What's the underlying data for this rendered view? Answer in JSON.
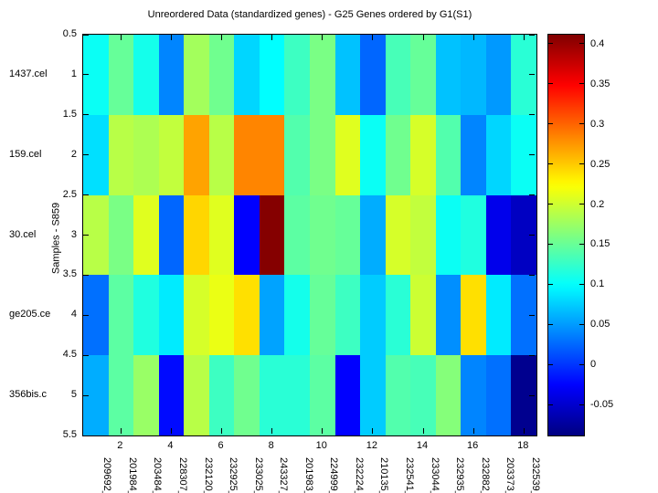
{
  "chart_data": {
    "type": "heatmap",
    "title": "Unreordered Data (standardized genes) - G25 Genes ordered by G1(S1)",
    "ylabel": "Samples - S859",
    "colormap": "jet",
    "grid": false,
    "colorbar_position": "right",
    "caxis": [
      -0.0875,
      0.4125
    ],
    "x_range": [
      0.5,
      18.5
    ],
    "y_range": [
      0.5,
      5.5
    ],
    "x_tick_values": [
      2,
      4,
      6,
      8,
      10,
      12,
      14,
      16,
      18
    ],
    "x_tick_labels": [
      "2",
      "4",
      "6",
      "8",
      "10",
      "12",
      "14",
      "16",
      "18"
    ],
    "y_tick_values": [
      0.5,
      1,
      1.5,
      2,
      2.5,
      3,
      3.5,
      4,
      4.5,
      5,
      5.5
    ],
    "y_tick_labels": [
      "0.5",
      "1",
      "1.5",
      "2",
      "2.5",
      "3",
      "3.5",
      "4",
      "4.5",
      "5",
      "5.5"
    ],
    "gene_labels": [
      "209692_",
      "201984_",
      "203484_",
      "228307_",
      "232120_",
      "232925_",
      "233025_",
      "243327_",
      "201983_",
      "224999_",
      "232224_",
      "210135_",
      "232541_",
      "233044_",
      "232935_",
      "232882_",
      "203373_",
      "232539_"
    ],
    "sample_labels": [
      "1437.cel",
      "159.cel",
      "30.cel",
      "ge205.ce",
      "356bis.c"
    ],
    "sample_positions": [
      1,
      2,
      3,
      4,
      5
    ],
    "values": [
      [
        0.105,
        0.15,
        0.11,
        0.04,
        0.18,
        0.155,
        0.08,
        0.1,
        0.13,
        0.16,
        0.07,
        0.025,
        0.135,
        0.15,
        0.07,
        0.065,
        0.05,
        0.12
      ],
      [
        0.085,
        0.19,
        0.185,
        0.195,
        0.27,
        0.19,
        0.285,
        0.285,
        0.14,
        0.16,
        0.21,
        0.105,
        0.155,
        0.205,
        0.14,
        0.04,
        0.08,
        0.105
      ],
      [
        0.19,
        0.16,
        0.21,
        0.025,
        0.245,
        0.21,
        -0.025,
        0.41,
        0.145,
        0.155,
        0.15,
        0.06,
        0.205,
        0.195,
        0.105,
        0.115,
        -0.035,
        -0.055
      ],
      [
        0.03,
        0.145,
        0.115,
        0.09,
        0.205,
        0.215,
        0.24,
        0.055,
        0.11,
        0.15,
        0.13,
        0.075,
        0.12,
        0.2,
        0.045,
        0.24,
        0.09,
        0.03
      ],
      [
        0.06,
        0.145,
        0.175,
        -0.02,
        0.19,
        0.13,
        0.155,
        0.12,
        0.12,
        0.145,
        -0.025,
        0.075,
        0.14,
        0.135,
        0.165,
        0.04,
        0.03,
        -0.08
      ]
    ],
    "colorbar_tick_values": [
      0.4,
      0.35,
      0.3,
      0.25,
      0.2,
      0.15,
      0.1,
      0.05,
      0,
      -0.05
    ],
    "colorbar_tick_labels": [
      "0.4",
      "0.35",
      "0.3",
      "0.25",
      "0.2",
      "0.15",
      "0.1",
      "0.05",
      "0",
      "-0.05"
    ]
  }
}
